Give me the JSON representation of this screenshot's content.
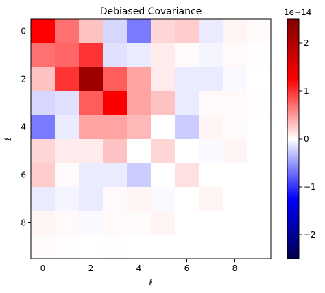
{
  "chart_data": {
    "type": "heatmap",
    "title": "Debiased Covariance",
    "xlabel": "ℓ",
    "ylabel": "ℓ",
    "x_ticks": [
      "0",
      "2",
      "4",
      "6",
      "8"
    ],
    "y_ticks": [
      "0",
      "2",
      "4",
      "6",
      "8"
    ],
    "colormap": "seismic",
    "vmin": -2.5,
    "vmax": 2.5,
    "colorbar_ticks": [
      "−2",
      "−1",
      "0",
      "1",
      "2"
    ],
    "colorbar_tick_values": [
      -2,
      -1,
      0,
      1,
      2
    ],
    "colorbar_scale_label": "1e−14",
    "grid": false,
    "matrix": [
      [
        1.25,
        0.7,
        0.3,
        -0.2,
        -0.65,
        0.2,
        0.25,
        -0.1,
        0.05,
        0.02
      ],
      [
        0.7,
        0.75,
        1.0,
        -0.15,
        -0.1,
        0.1,
        0.02,
        -0.05,
        0.03,
        0.01
      ],
      [
        0.3,
        1.0,
        2.2,
        0.8,
        0.45,
        0.1,
        -0.1,
        -0.1,
        -0.03,
        0.0
      ],
      [
        -0.2,
        -0.15,
        0.8,
        1.3,
        0.45,
        0.3,
        -0.1,
        0.03,
        0.03,
        0.01
      ],
      [
        -0.65,
        -0.1,
        0.45,
        0.45,
        0.35,
        0.0,
        -0.25,
        0.05,
        0.02,
        0.0
      ],
      [
        0.2,
        0.1,
        0.1,
        0.3,
        0.0,
        0.2,
        0.0,
        -0.03,
        0.05,
        0.0
      ],
      [
        0.25,
        0.02,
        -0.1,
        -0.1,
        -0.25,
        0.0,
        0.15,
        0.0,
        0.0,
        0.0
      ],
      [
        -0.1,
        -0.05,
        -0.1,
        0.03,
        0.05,
        -0.03,
        0.0,
        0.05,
        0.0,
        0.0
      ],
      [
        0.05,
        0.03,
        -0.03,
        0.03,
        0.02,
        0.05,
        0.0,
        0.0,
        0.0,
        0.0
      ],
      [
        0.02,
        0.01,
        0.0,
        0.01,
        0.0,
        0.0,
        0.0,
        0.0,
        0.0,
        0.0
      ]
    ]
  }
}
